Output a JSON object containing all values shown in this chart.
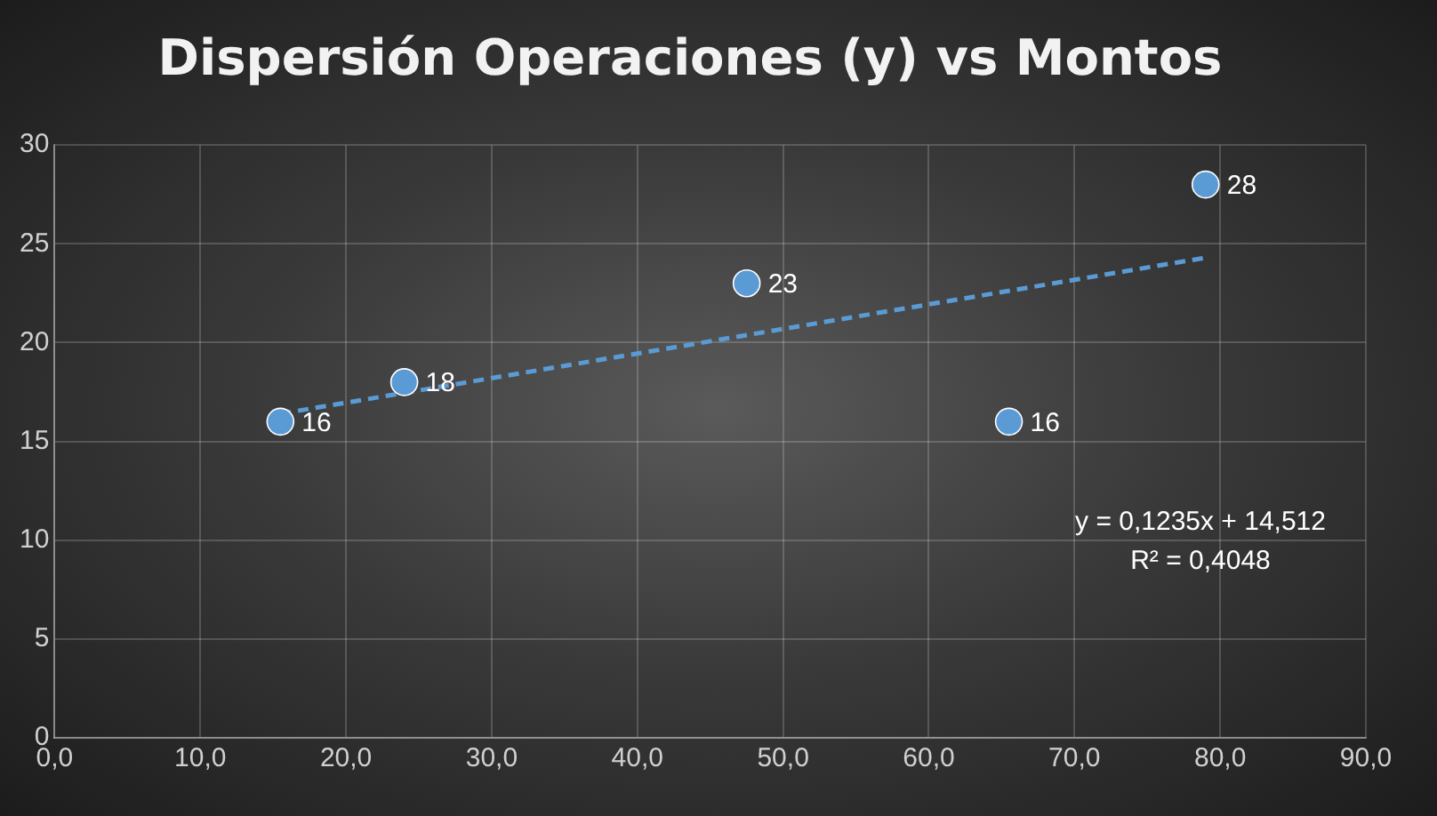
{
  "chart_data": {
    "type": "scatter",
    "title": "Dispersión Operaciones (y) vs Montos",
    "x": [
      15.5,
      24,
      47.5,
      65.5,
      79
    ],
    "series": [
      {
        "color": "#5b9bd5",
        "values": [
          16,
          18,
          23,
          16,
          28
        ],
        "value_labels": [
          "16",
          "18",
          "23",
          "16",
          "28"
        ]
      },
      {
        "type": "line",
        "color": "#5b9bd5",
        "x": [
          15.5,
          79
        ],
        "values": [
          16.4,
          24.3
        ],
        "line_style": "dashed",
        "marker": "none"
      }
    ],
    "xlim": [
      0,
      90
    ],
    "xticks": [
      {
        "value": 0,
        "label": "0,0"
      },
      {
        "value": 10,
        "label": "10,0"
      },
      {
        "value": 20,
        "label": "20,0"
      },
      {
        "value": 30,
        "label": "30,0"
      },
      {
        "value": 40,
        "label": "40,0"
      },
      {
        "value": 50,
        "label": "50,0"
      },
      {
        "value": 60,
        "label": "60,0"
      },
      {
        "value": 70,
        "label": "70,0"
      },
      {
        "value": 80,
        "label": "80,0"
      },
      {
        "value": 90,
        "label": "90,0"
      }
    ],
    "ylim": [
      0,
      30
    ],
    "yticks": [
      0,
      5,
      10,
      15,
      20,
      25,
      30
    ],
    "grid": true,
    "legend": false,
    "marker": "circle",
    "annotations": [
      "y = 0,1235x + 14,512",
      "R² = 0,4048"
    ]
  }
}
